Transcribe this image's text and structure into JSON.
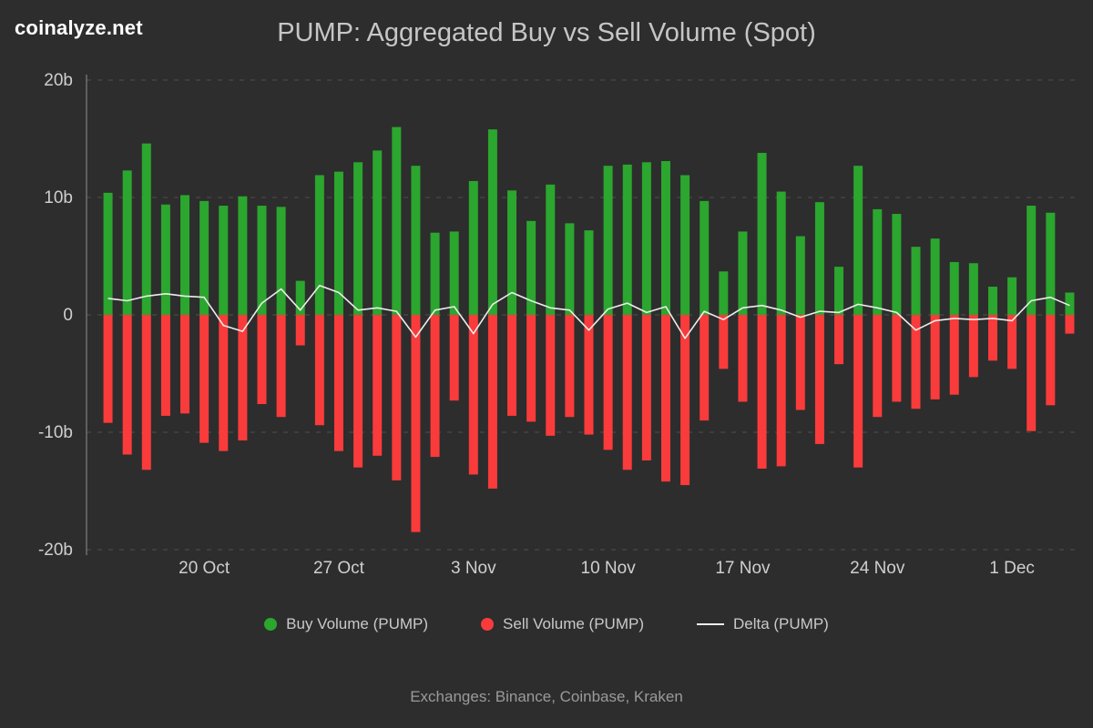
{
  "header": {
    "logo": "coinalyze.net",
    "title": "PUMP: Aggregated Buy vs Sell Volume (Spot)"
  },
  "legend": {
    "items": [
      {
        "label": "Buy Volume (PUMP)",
        "color": "#2ba62e",
        "swatch": "dot"
      },
      {
        "label": "Sell Volume (PUMP)",
        "color": "#fa3b3b",
        "swatch": "dot"
      },
      {
        "label": "Delta (PUMP)",
        "color": "#ededed",
        "swatch": "line"
      }
    ]
  },
  "footer": {
    "text": "Exchanges: Binance, Coinbase, Kraken"
  },
  "chart_data": {
    "type": "bar",
    "title": "PUMP: Aggregated Buy vs Sell Volume (Spot)",
    "unit": "billions",
    "ylim": [
      -20,
      20
    ],
    "grid": true,
    "legend_position": "bottom",
    "y_axis": {
      "tick_labels": [
        "20b",
        "10b",
        "0",
        "-10b",
        "-20b"
      ],
      "tick_values": [
        20,
        10,
        0,
        -10,
        -20
      ]
    },
    "x_axis": {
      "ticks": [
        {
          "label": "20 Oct",
          "index": 5
        },
        {
          "label": "27 Oct",
          "index": 12
        },
        {
          "label": "3 Nov",
          "index": 19
        },
        {
          "label": "10 Nov",
          "index": 26
        },
        {
          "label": "17 Nov",
          "index": 33
        },
        {
          "label": "24 Nov",
          "index": 40
        },
        {
          "label": "1 Dec",
          "index": 47
        }
      ],
      "n_points": 51
    },
    "series": [
      {
        "name": "Buy Volume (PUMP)",
        "type": "bar",
        "color": "#2ba62e",
        "values": [
          10.4,
          12.3,
          14.6,
          9.4,
          10.2,
          9.7,
          9.3,
          10.1,
          9.3,
          9.2,
          2.9,
          11.9,
          12.2,
          13.0,
          14.0,
          16.0,
          12.7,
          7.0,
          7.1,
          11.4,
          15.8,
          10.6,
          8.0,
          11.1,
          7.8,
          7.2,
          12.7,
          12.8,
          13.0,
          13.1,
          11.9,
          9.7,
          3.7,
          7.1,
          13.8,
          10.5,
          6.7,
          9.6,
          4.1,
          12.7,
          9.0,
          8.6,
          5.8,
          6.5,
          4.5,
          4.4,
          2.4,
          3.2,
          9.3,
          8.7,
          1.9
        ]
      },
      {
        "name": "Sell Volume (PUMP)",
        "type": "bar",
        "color": "#fa3b3b",
        "values": [
          -9.2,
          -11.9,
          -13.2,
          -8.6,
          -8.4,
          -10.9,
          -11.6,
          -10.7,
          -7.6,
          -8.7,
          -2.6,
          -9.4,
          -11.6,
          -13.0,
          -12.0,
          -14.1,
          -18.5,
          -12.1,
          -7.3,
          -13.6,
          -14.8,
          -8.6,
          -9.1,
          -10.3,
          -8.7,
          -10.2,
          -11.5,
          -13.2,
          -12.4,
          -14.2,
          -14.5,
          -9.0,
          -4.6,
          -7.4,
          -13.1,
          -12.9,
          -8.1,
          -11.0,
          -4.2,
          -13.0,
          -8.7,
          -7.4,
          -8.0,
          -7.2,
          -6.8,
          -5.3,
          -3.9,
          -4.6,
          -9.9,
          -7.7,
          -1.6
        ]
      },
      {
        "name": "Delta (PUMP)",
        "type": "line",
        "color": "#ededed",
        "values": [
          1.4,
          1.2,
          1.6,
          1.8,
          1.6,
          1.5,
          -0.9,
          -1.4,
          1.0,
          2.2,
          0.4,
          2.5,
          1.9,
          0.4,
          0.6,
          0.3,
          -1.9,
          0.4,
          0.7,
          -1.6,
          0.9,
          1.9,
          1.2,
          0.6,
          0.4,
          -1.3,
          0.5,
          1.0,
          0.2,
          0.7,
          -2.0,
          0.3,
          -0.4,
          0.6,
          0.8,
          0.4,
          -0.2,
          0.3,
          0.2,
          0.9,
          0.6,
          0.2,
          -1.3,
          -0.5,
          -0.3,
          -0.4,
          -0.3,
          -0.5,
          1.2,
          1.5,
          0.8
        ]
      }
    ]
  }
}
